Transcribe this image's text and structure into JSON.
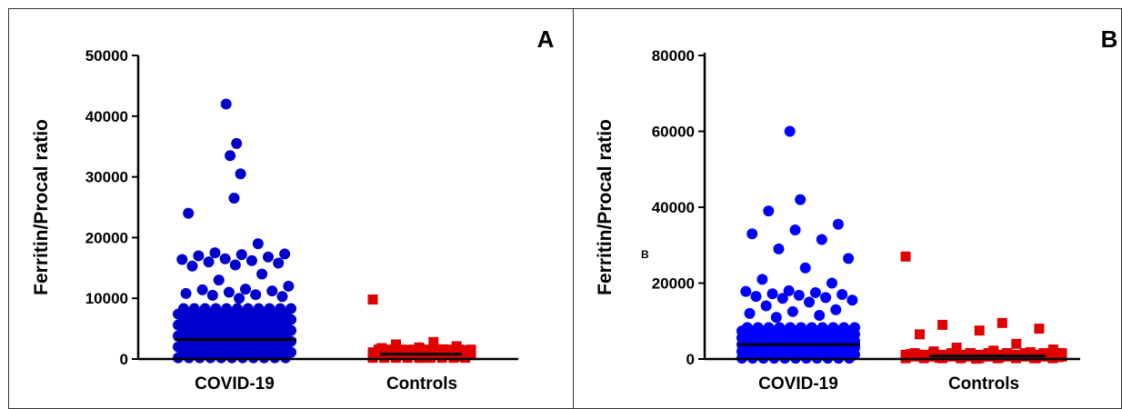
{
  "panels": [
    {
      "letter": "A",
      "stray_label": "",
      "chart_data": {
        "type": "scatter",
        "title": "",
        "xlabel": "",
        "ylabel": "Ferritin/Procal ratio",
        "categories": [
          "COVID-19",
          "Controls"
        ],
        "ylim": [
          0,
          50000
        ],
        "yticks": [
          0,
          10000,
          20000,
          30000,
          40000,
          50000
        ],
        "legend": "none",
        "grid": false,
        "series": [
          {
            "category": "COVID-19",
            "color": "#0000cc",
            "marker": "circle",
            "median": 3200,
            "values": [
              42000,
              35500,
              33500,
              30500,
              26500,
              24000,
              19000,
              17500,
              17300,
              17200,
              17000,
              16800,
              16500,
              16400,
              16200,
              16000,
              15800,
              15500,
              15300,
              14000,
              13000,
              12000,
              11500,
              11400,
              11200,
              11000,
              10800,
              10600,
              10500,
              10300,
              10000
            ]
          },
          {
            "category": "Controls",
            "color": "#e00000",
            "marker": "square",
            "median": 800,
            "values": [
              9800,
              2800,
              2400,
              2100,
              1900,
              1800,
              1600,
              1500,
              1400,
              1300,
              1200,
              1100,
              1000,
              800,
              700,
              600,
              400,
              200
            ]
          }
        ]
      }
    },
    {
      "letter": "B",
      "stray_label": "B",
      "chart_data": {
        "type": "scatter",
        "title": "",
        "xlabel": "",
        "ylabel": "Ferritin/Procal ratio",
        "categories": [
          "COVID-19",
          "Controls"
        ],
        "ylim": [
          0,
          80000
        ],
        "yticks": [
          0,
          20000,
          40000,
          60000,
          80000
        ],
        "legend": "none",
        "grid": false,
        "series": [
          {
            "category": "COVID-19",
            "color": "#0000ff",
            "marker": "circle",
            "median": 3800,
            "values": [
              60000,
              42000,
              39000,
              35500,
              34000,
              33000,
              31500,
              29000,
              26500,
              24000,
              21000,
              20000,
              18000,
              17800,
              17500,
              17200,
              17000,
              16800,
              16500,
              16200,
              16000,
              15500,
              15000,
              14000,
              13000,
              12500,
              12000,
              11500,
              11000
            ]
          },
          {
            "category": "Controls",
            "color": "#e00000",
            "marker": "square",
            "median": 800,
            "values": [
              27000,
              9500,
              9000,
              8000,
              7500,
              6500,
              4000,
              3000,
              2500,
              2200,
              2000,
              1800,
              1500,
              1300,
              1200,
              1100,
              1000,
              900,
              800,
              700,
              600,
              500,
              400,
              300,
              200,
              100
            ]
          }
        ]
      }
    }
  ]
}
